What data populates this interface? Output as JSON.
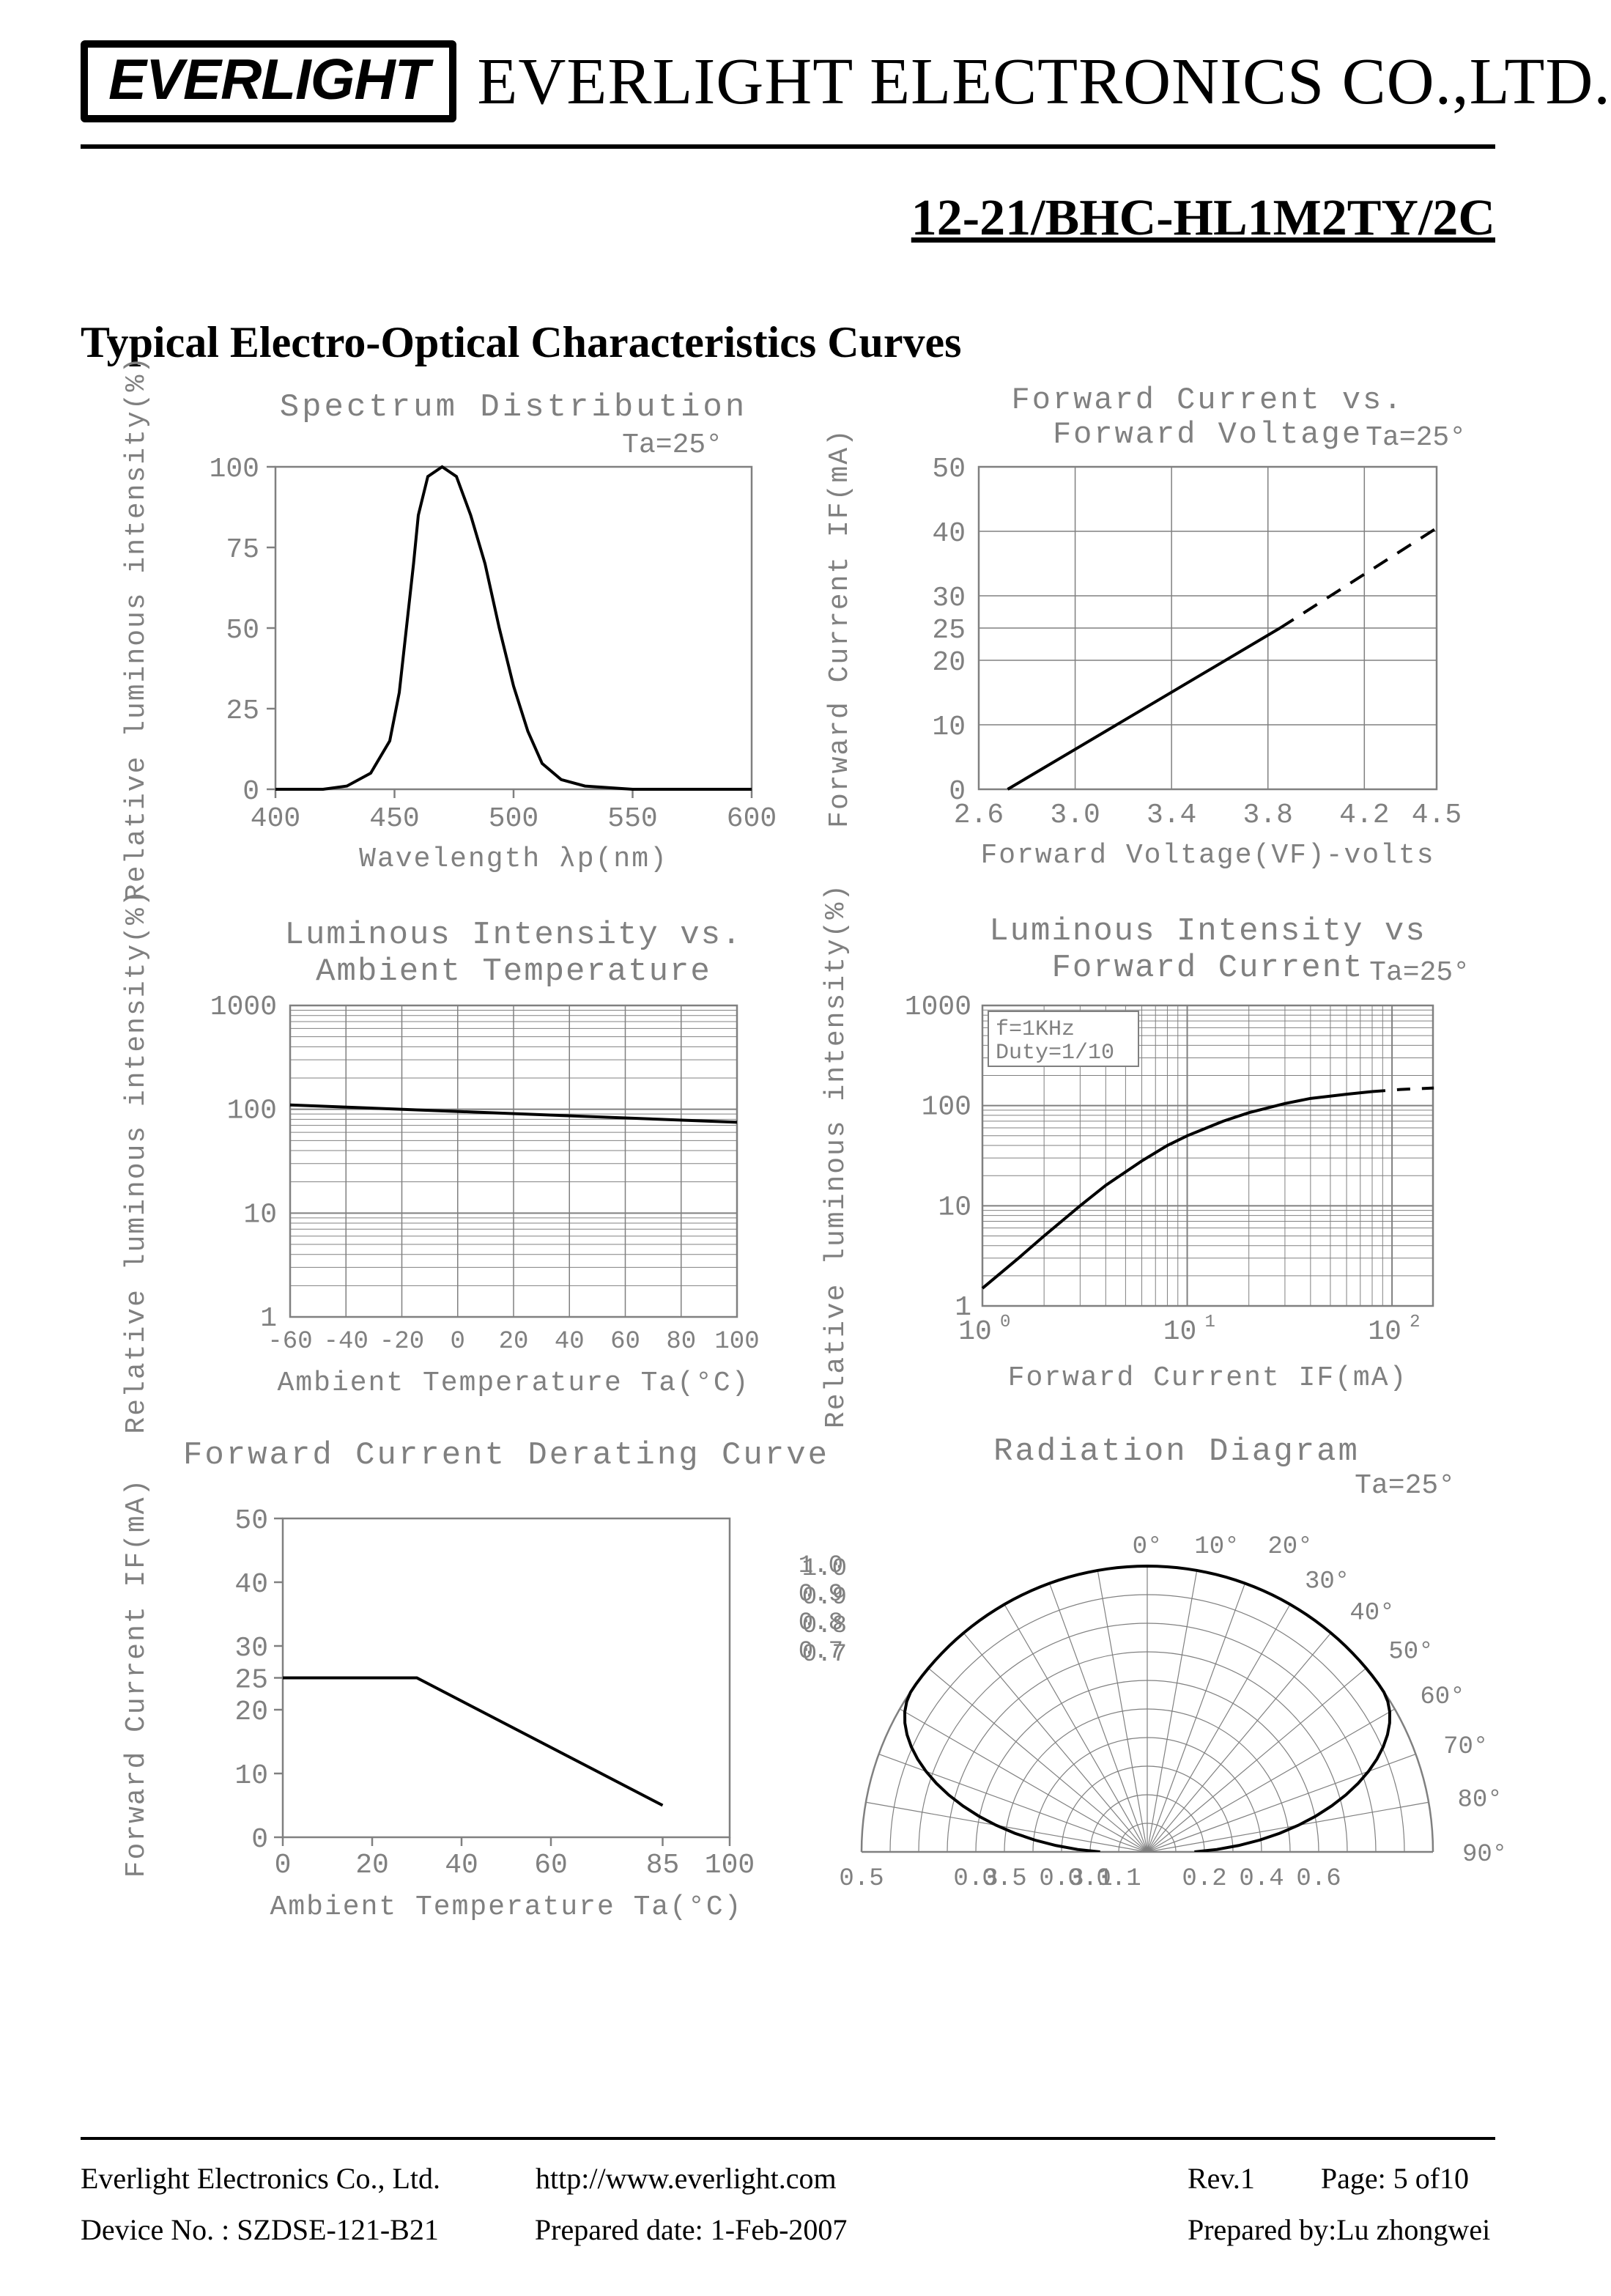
{
  "header": {
    "logo_text": "EVERLIGHT",
    "company_name": "EVERLIGHT ELECTRONICS CO.,LTD."
  },
  "part_number": "12-21/BHC-HL1M2TY/2C",
  "section_title": "Typical Electro-Optical Characteristics Curves",
  "chart1": {
    "type": "line",
    "title": "Spectrum Distribution",
    "subtitle": "Ta=25°",
    "xlabel": "Wavelength λp(nm)",
    "ylabel": "Relative luminous intensity(%)",
    "xlim": [
      400,
      600
    ],
    "ylim": [
      0,
      100
    ],
    "xticks": [
      400,
      450,
      500,
      550,
      600
    ],
    "yticks": [
      0,
      25,
      50,
      75,
      100
    ],
    "line_color": "#000000",
    "frame_color": "#808080",
    "text_color": "#808080",
    "grid_color": "#808080",
    "line_width": 4,
    "points": [
      [
        400,
        0
      ],
      [
        420,
        0
      ],
      [
        430,
        1
      ],
      [
        440,
        5
      ],
      [
        448,
        15
      ],
      [
        452,
        30
      ],
      [
        455,
        50
      ],
      [
        458,
        70
      ],
      [
        460,
        85
      ],
      [
        464,
        97
      ],
      [
        470,
        100
      ],
      [
        476,
        97
      ],
      [
        482,
        85
      ],
      [
        488,
        70
      ],
      [
        494,
        50
      ],
      [
        500,
        32
      ],
      [
        506,
        18
      ],
      [
        512,
        8
      ],
      [
        520,
        3
      ],
      [
        530,
        1
      ],
      [
        550,
        0
      ],
      [
        600,
        0
      ]
    ]
  },
  "chart2": {
    "type": "line",
    "title_line1": "Forward Current vs.",
    "title_line2": "Forward Voltage",
    "subtitle": "Ta=25°",
    "xlabel": "Forward Voltage(VF)-volts",
    "ylabel": "Forward Current IF(mA)",
    "xlim": [
      2.6,
      4.5
    ],
    "ylim": [
      0,
      50
    ],
    "xticks": [
      2.6,
      3.0,
      3.4,
      3.8,
      4.2,
      4.5
    ],
    "yticks": [
      0,
      10,
      20,
      25,
      30,
      40,
      50
    ],
    "line_color": "#000000",
    "frame_color": "#808080",
    "text_color": "#808080",
    "line_width": 4,
    "solid_points": [
      [
        2.72,
        0
      ],
      [
        3.85,
        25
      ]
    ],
    "dashed_points": [
      [
        3.85,
        25
      ],
      [
        4.5,
        40.5
      ]
    ]
  },
  "chart3": {
    "type": "semilogy",
    "title_line1": "Luminous Intensity vs.",
    "title_line2": "Ambient Temperature",
    "xlabel": "Ambient Temperature Ta(°C)",
    "ylabel": "Relative luminous intensity(%)",
    "xlim": [
      -60,
      100
    ],
    "ylim": [
      1,
      1000
    ],
    "xticks": [
      -60,
      -40,
      -20,
      0,
      20,
      40,
      60,
      80,
      100
    ],
    "ydecades": [
      1,
      10,
      100,
      1000
    ],
    "line_color": "#000000",
    "frame_color": "#808080",
    "text_color": "#808080",
    "line_width": 4,
    "points": [
      [
        -60,
        110
      ],
      [
        100,
        75
      ]
    ]
  },
  "chart4": {
    "type": "loglog",
    "title_line1": "Luminous Intensity vs",
    "title_line2": "Forward Current",
    "subtitle": "Ta=25°",
    "note_line1": "f=1KHz",
    "note_line2": "Duty=1/10",
    "xlabel": "Forward Current   IF(mA)",
    "ylabel": "Relative luminous intensity(%)",
    "xlim_exp": [
      0,
      2.2
    ],
    "ylim_exp": [
      0,
      3
    ],
    "xdecades": [
      1,
      10,
      100
    ],
    "ydecades": [
      1,
      10,
      100,
      1000
    ],
    "line_color": "#000000",
    "frame_color": "#808080",
    "text_color": "#808080",
    "line_width": 4,
    "solid_log_points": [
      [
        1,
        1.5
      ],
      [
        1.5,
        3
      ],
      [
        2,
        5
      ],
      [
        3,
        10
      ],
      [
        4,
        16
      ],
      [
        6,
        28
      ],
      [
        8,
        40
      ],
      [
        10,
        50
      ],
      [
        15,
        70
      ],
      [
        20,
        85
      ],
      [
        30,
        105
      ],
      [
        40,
        118
      ],
      [
        60,
        130
      ],
      [
        80,
        138
      ]
    ],
    "dashed_log_points": [
      [
        80,
        138
      ],
      [
        110,
        145
      ],
      [
        160,
        150
      ]
    ]
  },
  "chart5": {
    "type": "line",
    "title": "Forward Current Derating Curve",
    "xlabel": "Ambient Temperature Ta(°C)",
    "ylabel": "Forward Current IF(mA)",
    "xlim": [
      0,
      100
    ],
    "ylim": [
      0,
      50
    ],
    "xticks": [
      0,
      20,
      40,
      60,
      85,
      100
    ],
    "yticks": [
      0,
      10,
      20,
      25,
      30,
      40,
      50
    ],
    "line_color": "#000000",
    "frame_color": "#808080",
    "text_color": "#808080",
    "line_width": 4,
    "points": [
      [
        0,
        25
      ],
      [
        30,
        25
      ],
      [
        85,
        5
      ]
    ]
  },
  "chart6": {
    "type": "polar",
    "title": "Radiation Diagram",
    "subtitle": "Ta=25°",
    "angle_labels": [
      "0°",
      "10°",
      "20°",
      "30°",
      "40°",
      "50°",
      "60°",
      "70°",
      "80°",
      "90°"
    ],
    "radial_left_labels": [
      "1.0",
      "0.9",
      "0.8",
      "0.7"
    ],
    "bottom_labels_left": [
      "0.5",
      "0.3",
      "0.1"
    ],
    "bottom_labels_right": [
      "0.2",
      "0.4",
      "0.6"
    ],
    "line_color": "#000000",
    "frame_color": "#808080",
    "text_color": "#808080",
    "line_width": 4
  },
  "footer": {
    "row1": {
      "c1": "Everlight Electronics Co., Ltd.",
      "c2": "http://www.everlight.com",
      "c3a": "Rev.1",
      "c3b": "Page: 5 of10"
    },
    "row2": {
      "c1": "Device No. : SZDSE-121-B21",
      "c2": "Prepared date: 1-Feb-2007",
      "c3": "Prepared by:Lu zhongwei"
    }
  }
}
